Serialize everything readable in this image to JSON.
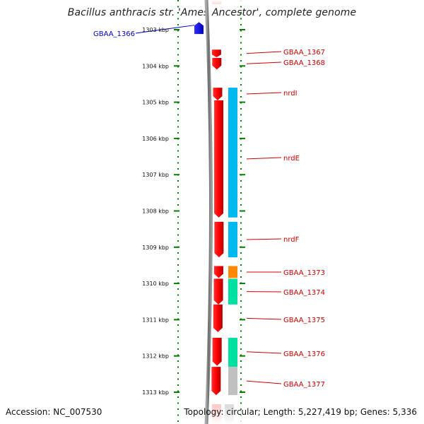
{
  "title": "Bacillus anthracis str. 'Ames Ancestor', complete genome",
  "footer": {
    "accession": "Accession: NC_007530",
    "topology": "Topology: circular; Length: 5,227,419 bp; Genes: 5,336"
  },
  "colors": {
    "red_gene": "#ff0000",
    "blue_gene": "#0000ff",
    "cyan_feature": "#00b8f0",
    "orange_feature": "#ff8800",
    "green_feature": "#00e0a0",
    "gray_feature": "#c0c0c0",
    "backbone": "#808080",
    "ruler": "#008000",
    "label_red": "#cc0000",
    "label_blue": "#0000cc"
  },
  "ruler_ticks": [
    {
      "kbp": 1303,
      "label": "1303 kbp"
    },
    {
      "kbp": 1304,
      "label": "1304 kbp"
    },
    {
      "kbp": 1305,
      "label": "1305 kbp"
    },
    {
      "kbp": 1306,
      "label": "1306 kbp"
    },
    {
      "kbp": 1307,
      "label": "1307 kbp"
    },
    {
      "kbp": 1308,
      "label": "1308 kbp"
    },
    {
      "kbp": 1309,
      "label": "1309 kbp"
    },
    {
      "kbp": 1310,
      "label": "1310 kbp"
    },
    {
      "kbp": 1311,
      "label": "1311 kbp"
    },
    {
      "kbp": 1312,
      "label": "1312 kbp"
    },
    {
      "kbp": 1313,
      "label": "1313 kbp"
    }
  ],
  "genes": [
    {
      "name": "GBAA_1366",
      "strand": "+",
      "start_kbp": 1302.79,
      "end_kbp": 1303.12,
      "color": "blue"
    },
    {
      "name": "GBAA_1367",
      "strand": "-",
      "start_kbp": 1303.55,
      "end_kbp": 1303.76,
      "color": "red"
    },
    {
      "name": "GBAA_1368",
      "strand": "-",
      "start_kbp": 1303.78,
      "end_kbp": 1304.1,
      "color": "red"
    },
    {
      "name": "nrdI",
      "strand": "-",
      "start_kbp": 1304.6,
      "end_kbp": 1304.95,
      "color": "red"
    },
    {
      "name": "nrdE",
      "strand": "-",
      "start_kbp": 1304.95,
      "end_kbp": 1308.18,
      "color": "red"
    },
    {
      "name": "nrdF",
      "strand": "-",
      "start_kbp": 1308.3,
      "end_kbp": 1309.28,
      "color": "red"
    },
    {
      "name": "GBAA_1373",
      "strand": "-",
      "start_kbp": 1309.52,
      "end_kbp": 1309.85,
      "color": "red"
    },
    {
      "name": "GBAA_1374",
      "strand": "-",
      "start_kbp": 1309.87,
      "end_kbp": 1310.58,
      "color": "red"
    },
    {
      "name": "GBAA_1375",
      "strand": "-",
      "start_kbp": 1310.58,
      "end_kbp": 1311.34,
      "color": "red"
    },
    {
      "name": "GBAA_1376",
      "strand": "-",
      "start_kbp": 1311.5,
      "end_kbp": 1312.27,
      "color": "red"
    },
    {
      "name": "GBAA_1377",
      "strand": "-",
      "start_kbp": 1312.3,
      "end_kbp": 1313.08,
      "color": "red"
    }
  ],
  "features": [
    {
      "kind": "cyan",
      "start_kbp": 1304.6,
      "end_kbp": 1308.18
    },
    {
      "kind": "cyan",
      "start_kbp": 1308.3,
      "end_kbp": 1309.28
    },
    {
      "kind": "orange",
      "start_kbp": 1309.52,
      "end_kbp": 1309.85
    },
    {
      "kind": "green",
      "start_kbp": 1309.87,
      "end_kbp": 1310.58
    },
    {
      "kind": "green",
      "start_kbp": 1311.5,
      "end_kbp": 1312.3
    },
    {
      "kind": "gray",
      "start_kbp": 1312.3,
      "end_kbp": 1313.08
    }
  ],
  "labels": [
    {
      "text": "GBAA_1366",
      "gene": "GBAA_1366",
      "color": "blue"
    },
    {
      "text": "GBAA_1367",
      "gene": "GBAA_1367",
      "color": "red"
    },
    {
      "text": "GBAA_1368",
      "gene": "GBAA_1368",
      "color": "red"
    },
    {
      "text": "nrdI",
      "gene": "nrdI",
      "color": "red"
    },
    {
      "text": "nrdE",
      "gene": "nrdE",
      "color": "red"
    },
    {
      "text": "nrdF",
      "gene": "nrdF",
      "color": "red"
    },
    {
      "text": "GBAA_1373",
      "gene": "GBAA_1373",
      "color": "red"
    },
    {
      "text": "GBAA_1374",
      "gene": "GBAA_1374",
      "color": "red"
    },
    {
      "text": "GBAA_1375",
      "gene": "GBAA_1375",
      "color": "red"
    },
    {
      "text": "GBAA_1376",
      "gene": "GBAA_1376",
      "color": "red"
    },
    {
      "text": "GBAA_1377",
      "gene": "GBAA_1377",
      "color": "red"
    }
  ]
}
